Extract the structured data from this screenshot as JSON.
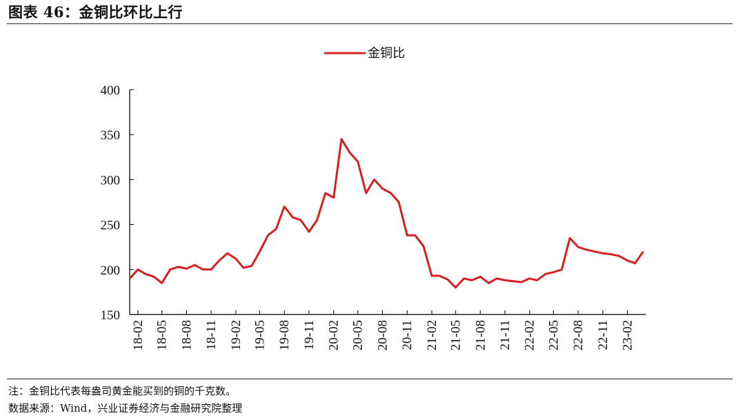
{
  "figure_title": "图表 46：金铜比环比上行",
  "note": "注：金铜比代表每盎司黄金能买到的铜的千克数。",
  "source": "数据来源：Wind，兴业证券经济与金融研究院整理",
  "chart_data": {
    "type": "line",
    "title": "",
    "xlabel": "",
    "ylabel": "",
    "ylim": [
      150,
      400
    ],
    "yticks": [
      150,
      200,
      250,
      300,
      350,
      400
    ],
    "xticks": [
      "18-02",
      "18-05",
      "18-08",
      "18-11",
      "19-02",
      "19-05",
      "19-08",
      "19-11",
      "20-02",
      "20-05",
      "20-08",
      "20-11",
      "21-02",
      "21-05",
      "21-08",
      "21-11",
      "22-02",
      "22-05",
      "22-08",
      "22-11",
      "23-02"
    ],
    "legend_position": "top-center",
    "grid": false,
    "series": [
      {
        "name": "金铜比",
        "color": "#d42020",
        "x": [
          "2018-01",
          "2018-02",
          "2018-03",
          "2018-04",
          "2018-05",
          "2018-06",
          "2018-07",
          "2018-08",
          "2018-09",
          "2018-10",
          "2018-11",
          "2018-12",
          "2019-01",
          "2019-02",
          "2019-03",
          "2019-04",
          "2019-05",
          "2019-06",
          "2019-07",
          "2019-08",
          "2019-09",
          "2019-10",
          "2019-11",
          "2019-12",
          "2020-01",
          "2020-02",
          "2020-03",
          "2020-04",
          "2020-05",
          "2020-06",
          "2020-07",
          "2020-08",
          "2020-09",
          "2020-10",
          "2020-11",
          "2020-12",
          "2021-01",
          "2021-02",
          "2021-03",
          "2021-04",
          "2021-05",
          "2021-06",
          "2021-07",
          "2021-08",
          "2021-09",
          "2021-10",
          "2021-11",
          "2021-12",
          "2022-01",
          "2022-02",
          "2022-03",
          "2022-04",
          "2022-05",
          "2022-06",
          "2022-07",
          "2022-08",
          "2022-09",
          "2022-10",
          "2022-11",
          "2022-12",
          "2023-01",
          "2023-02",
          "2023-03",
          "2023-04"
        ],
        "values": [
          190,
          200,
          195,
          192,
          185,
          200,
          203,
          201,
          205,
          200,
          200,
          210,
          218,
          212,
          202,
          204,
          220,
          238,
          245,
          270,
          258,
          255,
          242,
          255,
          285,
          280,
          345,
          330,
          320,
          285,
          300,
          290,
          285,
          275,
          238,
          238,
          226,
          193,
          193,
          189,
          180,
          190,
          188,
          192,
          185,
          190,
          188,
          187,
          186,
          190,
          188,
          195,
          197,
          200,
          235,
          225,
          222,
          220,
          218,
          217,
          215,
          210,
          207,
          220
        ]
      }
    ]
  }
}
